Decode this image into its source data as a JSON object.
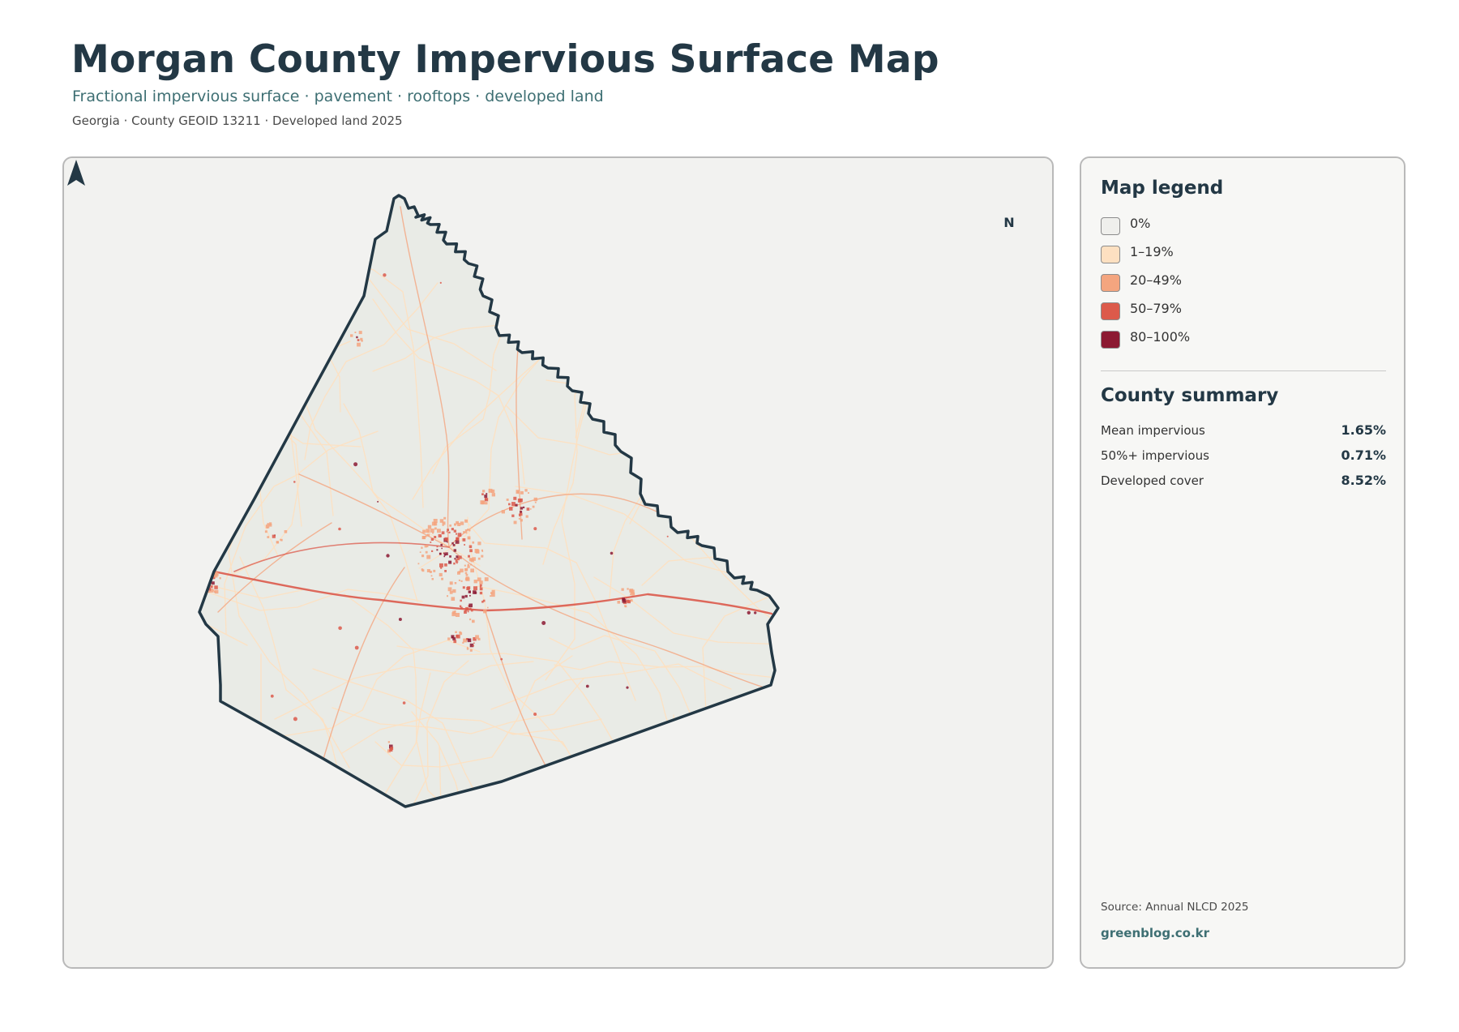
{
  "header": {
    "title": "Morgan County Impervious Surface Map",
    "subtitle": "Fractional impervious surface · pavement · rooftops · developed land",
    "meta": "Georgia · County GEOID 13211 · Developed land 2025"
  },
  "map": {
    "north_label": "N",
    "county_fill": "#e9ebe6",
    "outline_color": "#233845"
  },
  "legend": {
    "title": "Map legend",
    "items": [
      {
        "label": "0%",
        "color": "#efefec"
      },
      {
        "label": "1–19%",
        "color": "#fde0c1"
      },
      {
        "label": "20–49%",
        "color": "#f4a57f"
      },
      {
        "label": "50–79%",
        "color": "#dc5a4b"
      },
      {
        "label": "80–100%",
        "color": "#8c1a32"
      }
    ]
  },
  "summary": {
    "title": "County summary",
    "rows": [
      {
        "label": "Mean impervious",
        "value": "1.65%"
      },
      {
        "label": "50%+ impervious",
        "value": "0.71%"
      },
      {
        "label": "Developed cover",
        "value": "8.52%"
      }
    ]
  },
  "footer": {
    "source": "Source: Annual NLCD 2025",
    "brand": "greenblog.co.kr"
  }
}
